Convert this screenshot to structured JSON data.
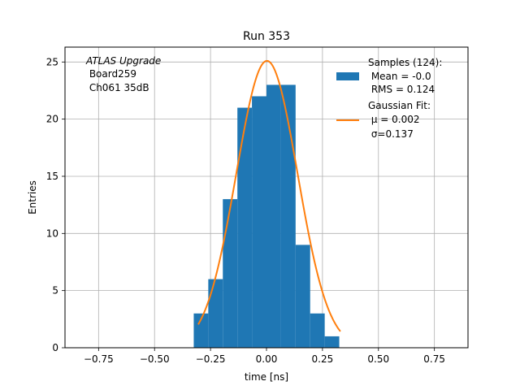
{
  "chart_data": {
    "type": "bar",
    "title": "Run 353",
    "xlabel": "time [ns]",
    "ylabel": "Entries",
    "xlim": [
      -0.9,
      0.9
    ],
    "ylim": [
      0,
      26.3
    ],
    "grid": true,
    "x_ticks": [
      -0.75,
      -0.5,
      -0.25,
      0.0,
      0.25,
      0.5,
      0.75
    ],
    "x_tick_labels": [
      "−0.75",
      "−0.50",
      "−0.25",
      "0.00",
      "0.25",
      "0.50",
      "0.75"
    ],
    "y_ticks": [
      0,
      5,
      10,
      15,
      20,
      25
    ],
    "y_tick_labels": [
      "0",
      "5",
      "10",
      "15",
      "20",
      "25"
    ],
    "bins": [
      {
        "x0": -0.325,
        "x1": -0.26,
        "value": 3
      },
      {
        "x0": -0.26,
        "x1": -0.195,
        "value": 6
      },
      {
        "x0": -0.195,
        "x1": -0.13,
        "value": 13
      },
      {
        "x0": -0.13,
        "x1": -0.065,
        "value": 21
      },
      {
        "x0": -0.065,
        "x1": 0.0,
        "value": 22
      },
      {
        "x0": 0.0,
        "x1": 0.065,
        "value": 23
      },
      {
        "x0": 0.065,
        "x1": 0.13,
        "value": 23
      },
      {
        "x0": 0.13,
        "x1": 0.195,
        "value": 9
      },
      {
        "x0": 0.195,
        "x1": 0.26,
        "value": 3
      },
      {
        "x0": 0.26,
        "x1": 0.325,
        "value": 1
      }
    ],
    "fit": {
      "type": "gaussian",
      "amplitude": 25.1,
      "mu": 0.002,
      "sigma": 0.137,
      "x_range": [
        -0.305,
        0.33
      ]
    },
    "colors": {
      "bars": "#1f77b4",
      "fit": "#ff7f0e",
      "grid": "#b0b0b0"
    },
    "legend": {
      "placement": "top-right",
      "entries": [
        {
          "kind": "patch",
          "lines": [
            "Samples (124):",
            " Mean = -0.0",
            " RMS = 0.124"
          ]
        },
        {
          "kind": "line",
          "lines": [
            "Gaussian Fit:",
            " μ = 0.002",
            " σ=0.137"
          ]
        }
      ]
    },
    "annotation": {
      "placement": "top-left",
      "lines": [
        "ATLAS Upgrade",
        " Board259",
        " Ch061 35dB"
      ]
    }
  }
}
